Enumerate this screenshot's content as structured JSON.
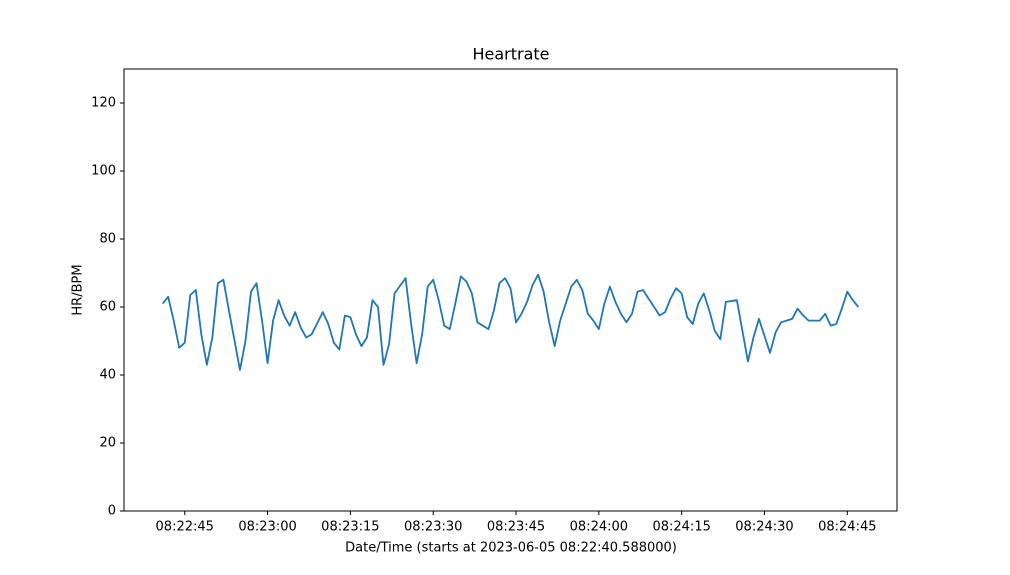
{
  "chart_data": {
    "type": "line",
    "title": "Heartrate",
    "xlabel": "Date/Time (starts at 2023-06-05 08:22:40.588000)",
    "ylabel": "HR/BPM",
    "x": [
      "08:22:41",
      "08:22:42",
      "08:22:43",
      "08:22:44",
      "08:22:45",
      "08:22:46",
      "08:22:47",
      "08:22:48",
      "08:22:49",
      "08:22:50",
      "08:22:51",
      "08:22:52",
      "08:22:53",
      "08:22:55",
      "08:22:56",
      "08:22:57",
      "08:22:58",
      "08:22:59",
      "08:23:00",
      "08:23:01",
      "08:23:02",
      "08:23:03",
      "08:23:04",
      "08:23:05",
      "08:23:06",
      "08:23:07",
      "08:23:08",
      "08:23:10",
      "08:23:11",
      "08:23:12",
      "08:23:13",
      "08:23:14",
      "08:23:15",
      "08:23:16",
      "08:23:17",
      "08:23:18",
      "08:23:19",
      "08:23:20",
      "08:23:21",
      "08:23:22",
      "08:23:23",
      "08:23:25",
      "08:23:26",
      "08:23:27",
      "08:23:28",
      "08:23:29",
      "08:23:30",
      "08:23:31",
      "08:23:32",
      "08:23:33",
      "08:23:34",
      "08:23:35",
      "08:23:36",
      "08:23:37",
      "08:23:38",
      "08:23:40",
      "08:23:41",
      "08:23:42",
      "08:23:43",
      "08:23:44",
      "08:23:45",
      "08:23:46",
      "08:23:47",
      "08:23:48",
      "08:23:49",
      "08:23:50",
      "08:23:51",
      "08:23:52",
      "08:23:53",
      "08:23:55",
      "08:23:56",
      "08:23:57",
      "08:23:58",
      "08:23:59",
      "08:24:00",
      "08:24:01",
      "08:24:02",
      "08:24:03",
      "08:24:04",
      "08:24:05",
      "08:24:06",
      "08:24:07",
      "08:24:08",
      "08:24:10",
      "08:24:11",
      "08:24:12",
      "08:24:13",
      "08:24:14",
      "08:24:15",
      "08:24:16",
      "08:24:17",
      "08:24:18",
      "08:24:19",
      "08:24:20",
      "08:24:21",
      "08:24:22",
      "08:24:23",
      "08:24:25",
      "08:24:26",
      "08:24:27",
      "08:24:28",
      "08:24:29",
      "08:24:30",
      "08:24:31",
      "08:24:32",
      "08:24:33",
      "08:24:34",
      "08:24:35",
      "08:24:36",
      "08:24:37",
      "08:24:38",
      "08:24:40",
      "08:24:41",
      "08:24:42",
      "08:24:43",
      "08:24:44",
      "08:24:45",
      "08:24:46",
      "08:24:47"
    ],
    "series": [
      {
        "name": "HR",
        "color": "#1f77b4",
        "values": [
          61,
          63,
          56,
          48,
          49.5,
          63.5,
          65,
          52,
          43,
          51,
          67,
          68,
          59,
          41.5,
          50,
          64.5,
          67,
          56,
          43.5,
          56,
          62,
          57.5,
          54.5,
          58.5,
          54,
          51,
          52,
          58.5,
          55,
          49.5,
          47.5,
          57.5,
          57,
          52,
          48.5,
          51,
          62,
          60,
          43,
          49,
          64,
          68.5,
          55,
          43.5,
          52,
          66,
          68,
          62,
          54.5,
          53.5,
          61,
          69,
          67.5,
          64,
          55.5,
          53.5,
          59,
          67,
          68.5,
          65.5,
          55.5,
          58,
          61.5,
          66.5,
          69.5,
          64.5,
          55.5,
          48.5,
          56,
          66,
          68,
          65,
          58,
          56,
          53.5,
          61,
          66,
          61.5,
          58,
          55.5,
          58,
          64.5,
          65,
          60,
          57.5,
          58.5,
          62.5,
          65.5,
          64,
          57,
          55,
          61,
          64,
          59,
          53,
          50.5,
          61.5,
          62,
          53,
          44,
          51,
          56.5,
          51.5,
          46.5,
          52.5,
          55.5,
          56,
          56.5,
          59.5,
          57.5,
          56,
          56,
          58,
          54.5,
          55,
          59.5,
          64.5,
          62,
          60
        ]
      }
    ],
    "xlim": [
      "08:22:34",
      "08:24:54"
    ],
    "xticks": [
      "08:22:45",
      "08:23:00",
      "08:23:15",
      "08:23:30",
      "08:23:45",
      "08:24:00",
      "08:24:15",
      "08:24:30",
      "08:24:45"
    ],
    "ylim": [
      0,
      130
    ],
    "yticks": [
      0,
      20,
      40,
      60,
      80,
      100,
      120
    ],
    "grid": false
  }
}
